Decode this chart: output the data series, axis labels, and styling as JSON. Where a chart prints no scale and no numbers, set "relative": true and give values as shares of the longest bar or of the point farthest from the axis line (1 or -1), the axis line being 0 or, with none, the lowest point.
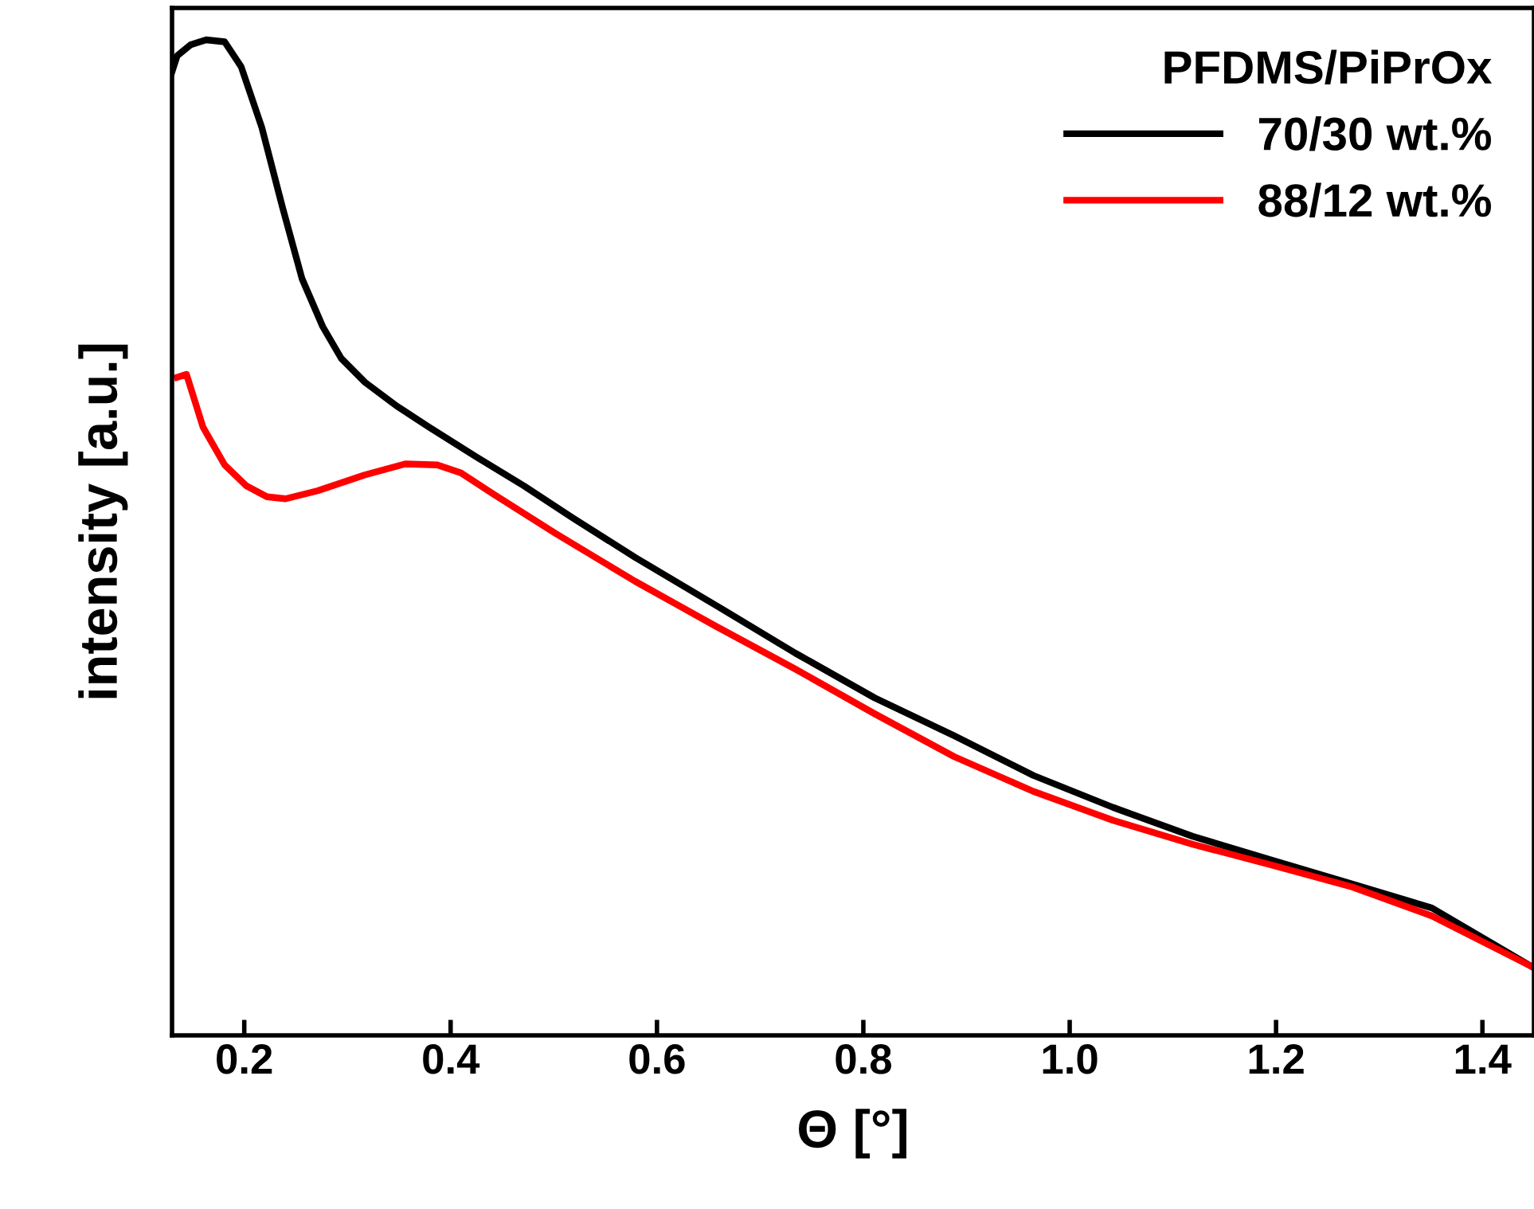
{
  "chart_data": {
    "type": "line",
    "relative": true,
    "xlabel": "Θ [°]",
    "ylabel": "intensity [a.u.]",
    "legend_title": "PFDMS/PiPrOx",
    "legend": "top right",
    "grid": false,
    "marker": "none",
    "line_style": "solid",
    "xlim": [
      0.13,
      1.45
    ],
    "xticks": [
      {
        "value": 0.2,
        "label": "0.2"
      },
      {
        "value": 0.4,
        "label": "0.4"
      },
      {
        "value": 0.6,
        "label": "0.6"
      },
      {
        "value": 0.8,
        "label": "0.8"
      },
      {
        "value": 1.0,
        "label": "1.0"
      },
      {
        "value": 1.2,
        "label": "1.2"
      },
      {
        "value": 1.4,
        "label": "1.4"
      }
    ],
    "series": [
      {
        "name": "70/30 wt.%",
        "color": "#000000",
        "x": [
          0.13,
          0.135,
          0.148,
          0.163,
          0.181,
          0.197,
          0.217,
          0.237,
          0.256,
          0.276,
          0.294,
          0.317,
          0.348,
          0.379,
          0.425,
          0.471,
          0.518,
          0.579,
          0.657,
          0.734,
          0.811,
          0.888,
          0.965,
          1.042,
          1.119,
          1.196,
          1.274,
          1.351,
          1.448
        ],
        "values": [
          0.968,
          0.984,
          0.995,
          1.0,
          0.998,
          0.973,
          0.912,
          0.832,
          0.76,
          0.712,
          0.68,
          0.656,
          0.632,
          0.611,
          0.581,
          0.552,
          0.52,
          0.48,
          0.432,
          0.384,
          0.339,
          0.301,
          0.261,
          0.229,
          0.2,
          0.176,
          0.152,
          0.128,
          0.069
        ]
      },
      {
        "name": "88/12 wt.%",
        "color": "#ff0000",
        "x": [
          0.135,
          0.144,
          0.16,
          0.181,
          0.202,
          0.222,
          0.24,
          0.271,
          0.317,
          0.356,
          0.387,
          0.41,
          0.441,
          0.502,
          0.579,
          0.657,
          0.734,
          0.811,
          0.888,
          0.965,
          1.042,
          1.119,
          1.196,
          1.274,
          1.351,
          1.448
        ],
        "values": [
          0.661,
          0.664,
          0.611,
          0.573,
          0.552,
          0.541,
          0.539,
          0.547,
          0.563,
          0.574,
          0.573,
          0.565,
          0.544,
          0.504,
          0.456,
          0.411,
          0.368,
          0.323,
          0.28,
          0.245,
          0.216,
          0.192,
          0.171,
          0.149,
          0.12,
          0.069
        ]
      }
    ]
  }
}
